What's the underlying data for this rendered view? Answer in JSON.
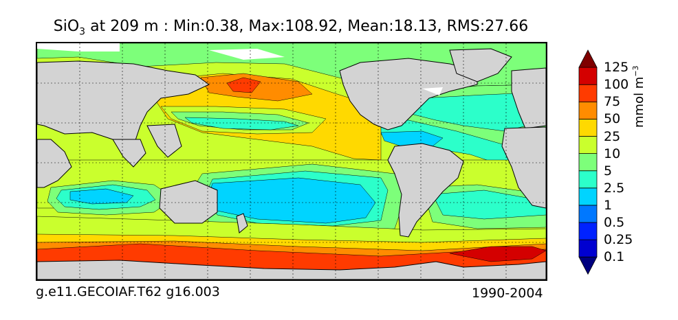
{
  "title": {
    "var_main": "SiO",
    "var_sub": "3",
    "stats": " at 209 m : Min:0.38, Max:108.92, Mean:18.13, RMS:27.66"
  },
  "footer": {
    "case": "g.e11.GECOIAF.T62 g16.003",
    "period": "1990-2004"
  },
  "colorbar": {
    "units_main": "mmol m",
    "units_sup": "−3",
    "levels": [
      "0.1",
      "0.25",
      "0.5",
      "1",
      "2.5",
      "5",
      "10",
      "25",
      "50",
      "75",
      "100",
      "125"
    ],
    "colors": [
      "#00007f",
      "#0000d0",
      "#0022ff",
      "#0078ff",
      "#00d4ff",
      "#2cffca",
      "#7dff7a",
      "#caff2d",
      "#ffd900",
      "#ff8c00",
      "#ff3b00",
      "#d40000",
      "#7f0000"
    ]
  },
  "colors": {
    "land": "#d3d3d3",
    "ice": "#ffffff",
    "coast": "#000000"
  }
}
